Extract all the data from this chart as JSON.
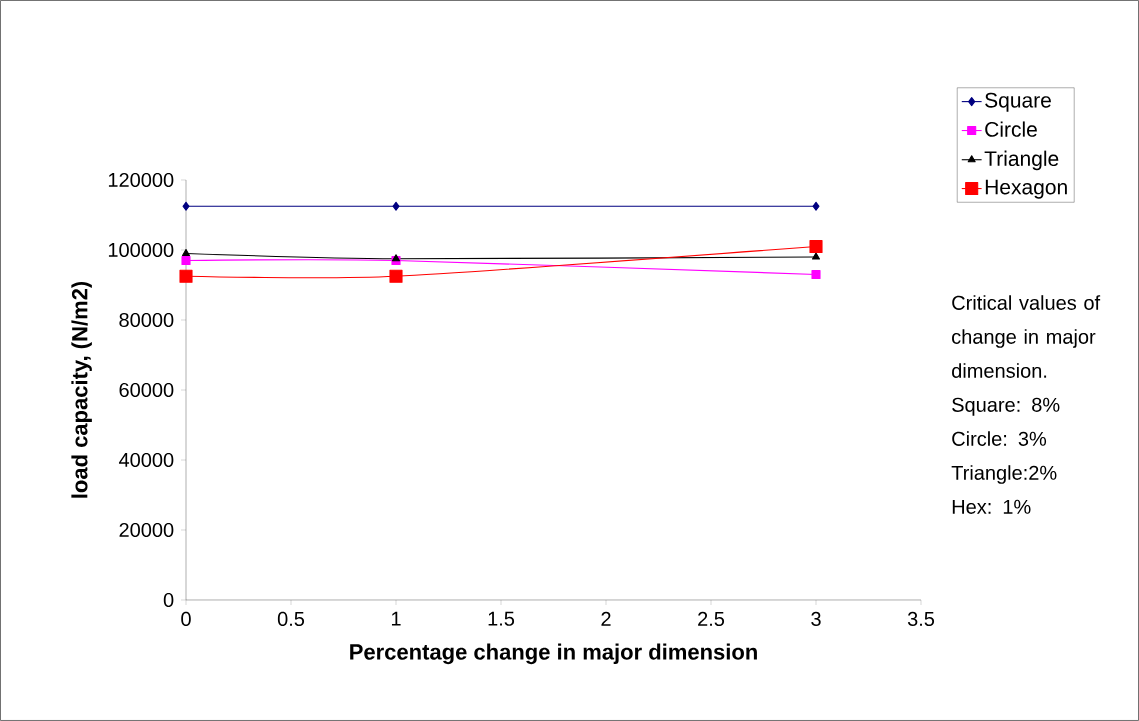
{
  "chart_data": {
    "type": "line",
    "xlabel": "Percentage change in major dimension",
    "ylabel": "load capacity, (N/m2)",
    "x": [
      0,
      1,
      3
    ],
    "series": [
      {
        "name": "Square",
        "color": "#000080",
        "marker": "diamond",
        "values": [
          112500,
          112500,
          112500
        ]
      },
      {
        "name": "Circle",
        "color": "#ff00ff",
        "marker": "square",
        "values": [
          97000,
          97000,
          93000
        ]
      },
      {
        "name": "Triangle",
        "color": "#000000",
        "marker": "triangle",
        "values": [
          99000,
          97500,
          98000
        ]
      },
      {
        "name": "Hexagon",
        "color": "#ff0000",
        "marker": "square",
        "values": [
          92500,
          92500,
          101000
        ]
      }
    ],
    "xlim": [
      0,
      3.5
    ],
    "xticks": [
      0,
      0.5,
      1,
      1.5,
      2,
      2.5,
      3,
      3.5
    ],
    "ylim": [
      0,
      120000
    ],
    "yticks": [
      0,
      20000,
      40000,
      60000,
      80000,
      100000,
      120000
    ],
    "legend": "right",
    "line_style": "solid",
    "annotations": [
      "Critical values of change in major dimension.",
      "Square: 8%",
      "Circle:   3%",
      "Triangle:2%",
      "Hex:      1%"
    ]
  }
}
